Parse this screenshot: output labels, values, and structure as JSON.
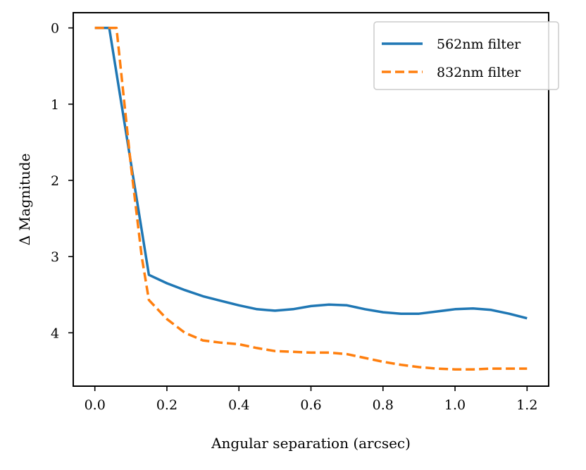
{
  "chart_data": {
    "type": "line",
    "title": "",
    "xlabel": "Angular separation (arcsec)",
    "ylabel": "Δ Magnitude",
    "xlim": [
      -0.06,
      1.26
    ],
    "ylim": [
      4.7,
      -0.2
    ],
    "y_inverted": true,
    "xticks": [
      0.0,
      0.2,
      0.4,
      0.6,
      0.8,
      1.0,
      1.2
    ],
    "xtick_labels": [
      "0.0",
      "0.2",
      "0.4",
      "0.6",
      "0.8",
      "1.0",
      "1.2"
    ],
    "yticks": [
      0,
      1,
      2,
      3,
      4
    ],
    "ytick_labels": [
      "0",
      "1",
      "2",
      "3",
      "4"
    ],
    "grid": false,
    "legend_position": "top-right",
    "series": [
      {
        "name": "562nm filter",
        "color": "#1f77b4",
        "style": "solid",
        "x": [
          0.0,
          0.04,
          0.15,
          0.2,
          0.25,
          0.3,
          0.35,
          0.4,
          0.45,
          0.5,
          0.55,
          0.6,
          0.65,
          0.7,
          0.75,
          0.8,
          0.85,
          0.9,
          0.95,
          1.0,
          1.05,
          1.1,
          1.15,
          1.2
        ],
        "y": [
          0.0,
          0.0,
          3.24,
          3.35,
          3.44,
          3.52,
          3.58,
          3.64,
          3.69,
          3.71,
          3.69,
          3.65,
          3.63,
          3.64,
          3.69,
          3.73,
          3.75,
          3.75,
          3.72,
          3.69,
          3.68,
          3.7,
          3.75,
          3.81
        ]
      },
      {
        "name": "832nm filter",
        "color": "#ff7f0e",
        "style": "dashed",
        "x": [
          0.0,
          0.06,
          0.1,
          0.13,
          0.15,
          0.2,
          0.25,
          0.3,
          0.35,
          0.4,
          0.45,
          0.5,
          0.55,
          0.6,
          0.65,
          0.7,
          0.75,
          0.8,
          0.85,
          0.9,
          0.95,
          1.0,
          1.05,
          1.1,
          1.15,
          1.2
        ],
        "y": [
          0.0,
          0.0,
          1.8,
          3.0,
          3.57,
          3.82,
          4.0,
          4.1,
          4.13,
          4.15,
          4.2,
          4.24,
          4.25,
          4.26,
          4.26,
          4.28,
          4.33,
          4.38,
          4.42,
          4.45,
          4.47,
          4.48,
          4.48,
          4.47,
          4.47,
          4.47
        ]
      }
    ]
  }
}
